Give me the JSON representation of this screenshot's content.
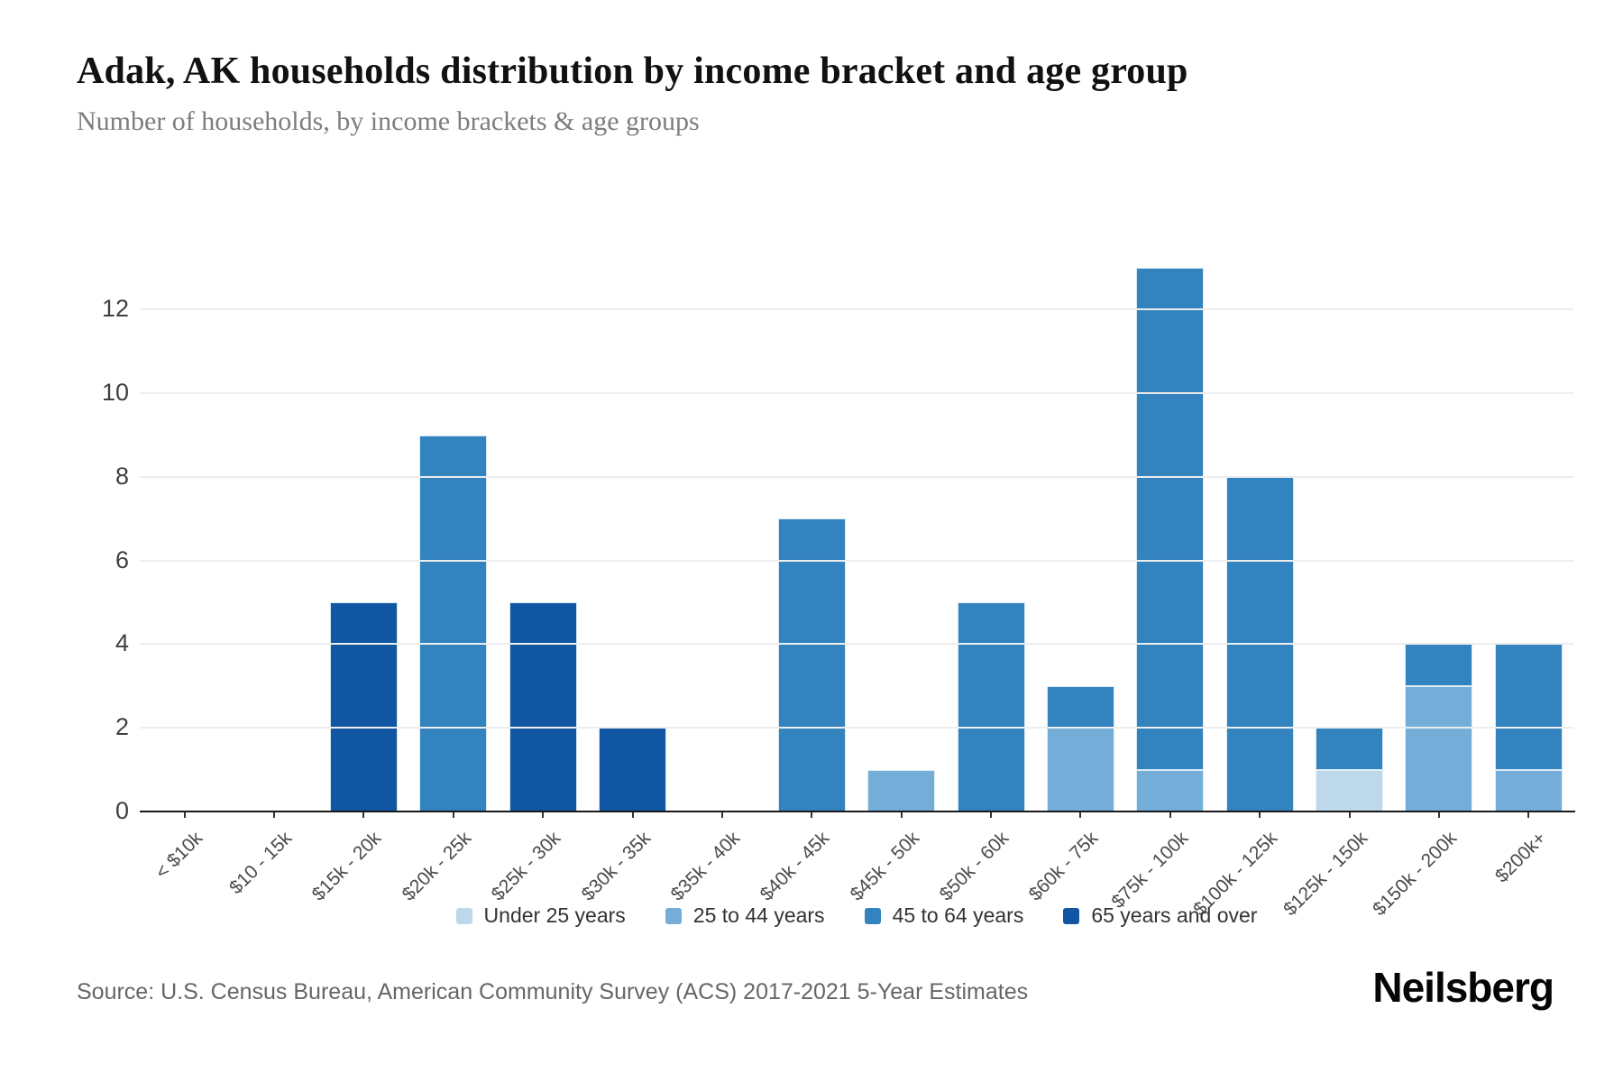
{
  "header": {
    "title": "Adak, AK households distribution by income bracket and age group",
    "subtitle": "Number of households, by income brackets & age groups"
  },
  "chart_data": {
    "type": "bar",
    "stacked": true,
    "title": "Adak, AK households distribution by income bracket and age group",
    "xlabel": "",
    "ylabel": "",
    "categories": [
      "< $10k",
      "$10 - 15k",
      "$15k - 20k",
      "$20k - 25k",
      "$25k - 30k",
      "$30k - 35k",
      "$35k - 40k",
      "$40k - 45k",
      "$45k - 50k",
      "$50k - 60k",
      "$60k - 75k",
      "$75k - 100k",
      "$100k - 125k",
      "$125k - 150k",
      "$150k - 200k",
      "$200k+"
    ],
    "series": [
      {
        "name": "Under 25 years",
        "color": "#bdd8ea",
        "values": [
          0,
          0,
          0,
          0,
          0,
          0,
          0,
          0,
          0,
          0,
          0,
          0,
          0,
          1,
          0,
          0
        ]
      },
      {
        "name": "25 to 44 years",
        "color": "#74aed8",
        "values": [
          0,
          0,
          0,
          0,
          0,
          0,
          0,
          0,
          1,
          0,
          2,
          1,
          0,
          0,
          3,
          1
        ]
      },
      {
        "name": "45 to 64 years",
        "color": "#3383bf",
        "values": [
          0,
          0,
          0,
          9,
          0,
          0,
          0,
          7,
          0,
          5,
          1,
          12,
          8,
          1,
          1,
          3
        ]
      },
      {
        "name": "65 years and over",
        "color": "#1156a2",
        "values": [
          0,
          0,
          5,
          0,
          5,
          2,
          0,
          0,
          0,
          0,
          0,
          0,
          0,
          0,
          0,
          0
        ]
      }
    ],
    "totals_by_category": [
      0,
      0,
      5,
      9,
      5,
      2,
      0,
      7,
      1,
      5,
      3,
      13,
      8,
      2,
      4,
      4
    ],
    "yticks": [
      0,
      2,
      4,
      6,
      8,
      10,
      12
    ],
    "ylim": [
      0,
      13
    ],
    "grid": true,
    "legend_position": "bottom"
  },
  "footer": {
    "source": "Source: U.S. Census Bureau, American Community Survey (ACS) 2017-2021 5-Year Estimates",
    "brand": "Neilsberg"
  }
}
